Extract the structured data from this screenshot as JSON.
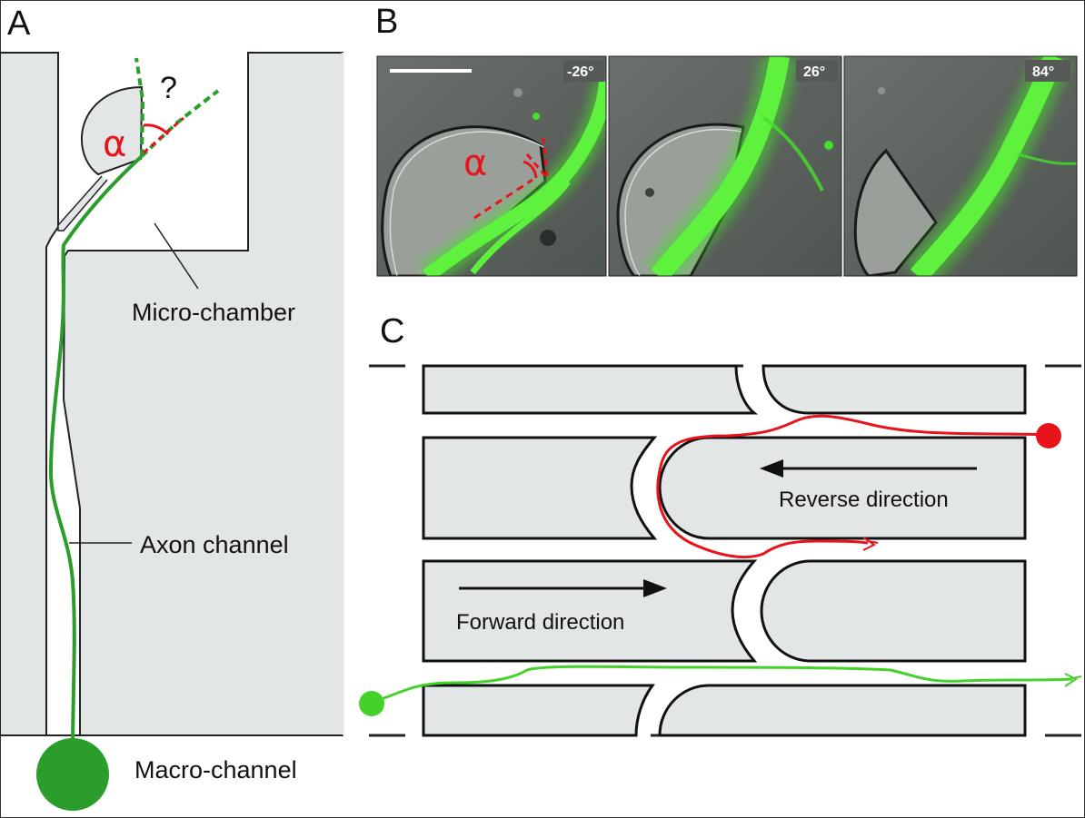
{
  "panels": {
    "a": {
      "letter": "A",
      "alpha": "α",
      "question": "?",
      "label_micro": "Micro-chamber",
      "label_axon": "Axon channel",
      "label_macro": "Macro-channel"
    },
    "b": {
      "letter": "B",
      "angles": [
        "-26°",
        "26°",
        "84°"
      ],
      "alpha": "α"
    },
    "c": {
      "letter": "C",
      "label_reverse": "Reverse direction",
      "label_forward": "Forward direction"
    }
  },
  "colors": {
    "axon_green": "#2a9d2a",
    "bright_green": "#44e02a",
    "red": "#e8141b",
    "gray_fill": "#e3e6e6",
    "micrograph_bg": "#5b615c"
  }
}
